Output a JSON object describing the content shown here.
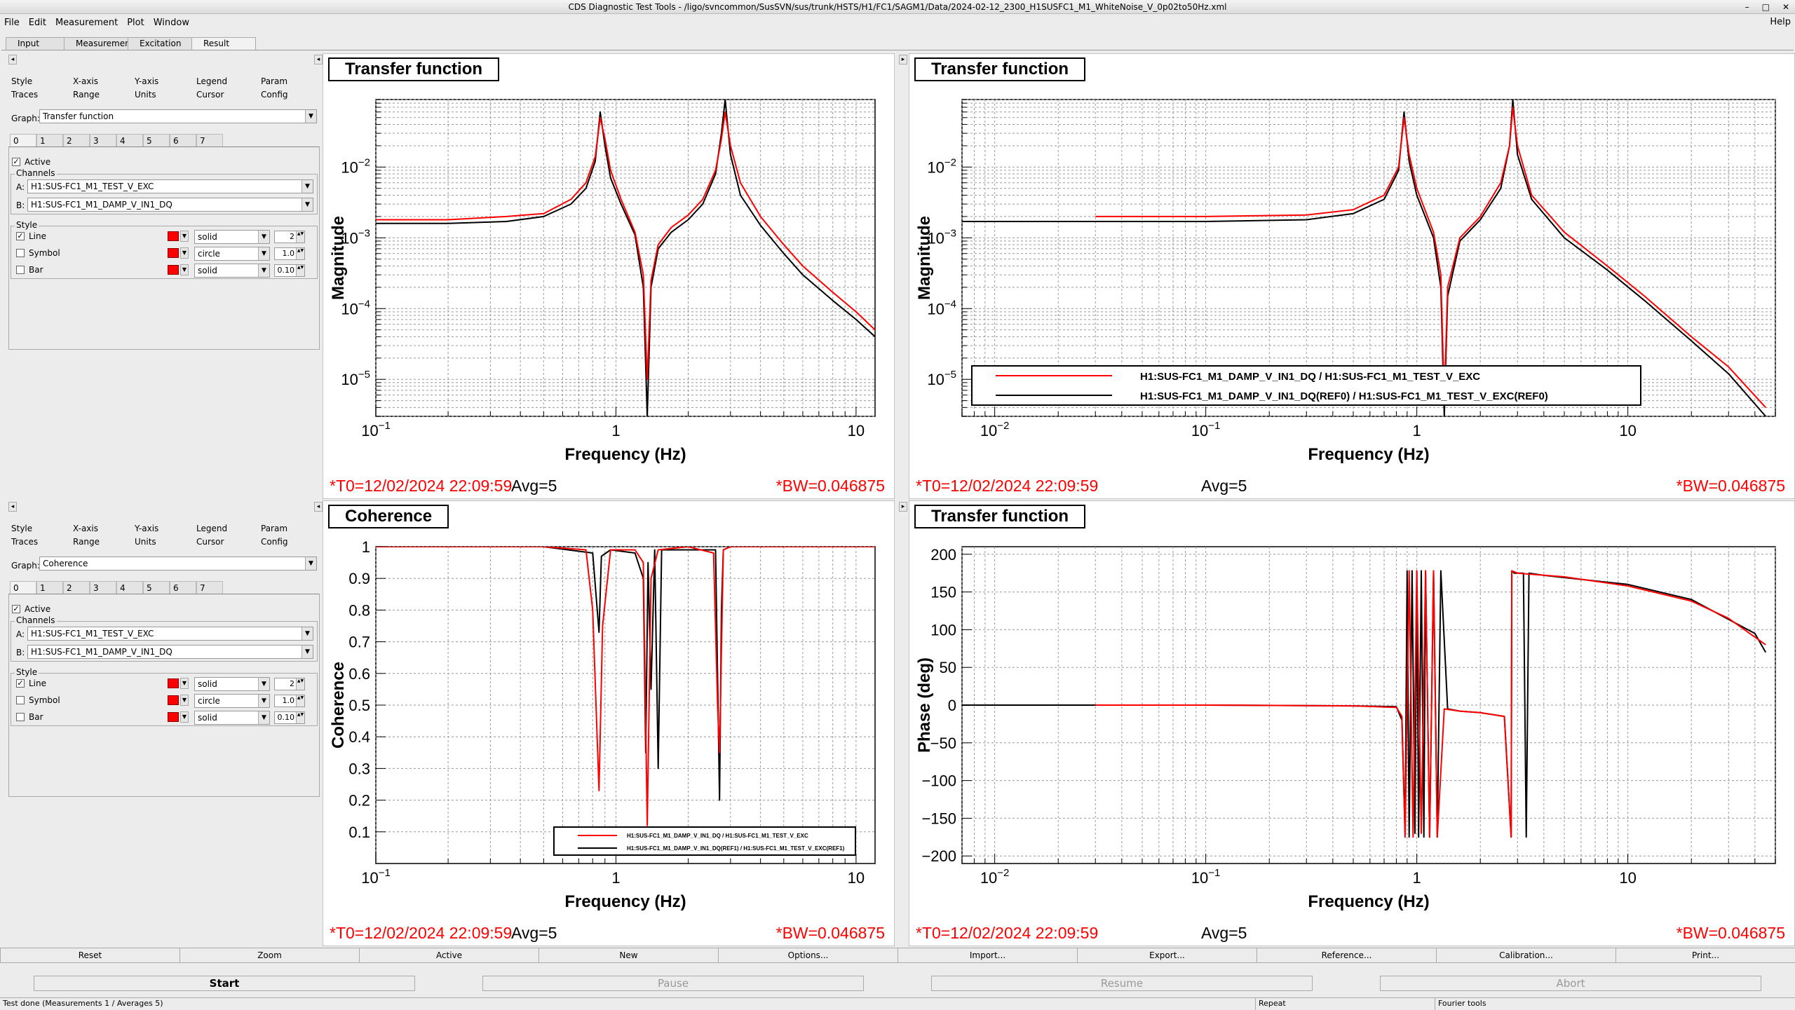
{
  "window": {
    "title": "CDS Diagnostic Test Tools - /ligo/svncommon/SusSVN/sus/trunk/HSTS/H1/FC1/SAGM1/Data/2024-02-12_2300_H1SUSFC1_M1_WhiteNoise_V_0p02to50Hz.xml",
    "wm_buttons": [
      "–",
      "□",
      "✕"
    ]
  },
  "menu": {
    "items": [
      "File",
      "Edit",
      "Measurement",
      "Plot",
      "Window"
    ],
    "help": "Help"
  },
  "main_tabs": [
    "Input",
    "Measurement",
    "Excitation",
    "Result"
  ],
  "controls": [
    {
      "subtabs_row1": [
        "Style",
        "X-axis",
        "Y-axis",
        "Legend",
        "Param"
      ],
      "subtabs_row2": [
        "Traces",
        "Range",
        "Units",
        "Cursor",
        "Config"
      ],
      "graph_label": "Graph:",
      "graph_value": "Transfer function",
      "trace_tabs": [
        "0",
        "1",
        "2",
        "3",
        "4",
        "5",
        "6",
        "7"
      ],
      "active_label": "Active",
      "channels_label": "Channels",
      "channel_a_label": "A:",
      "channel_a": "H1:SUS-FC1_M1_TEST_V_EXC",
      "channel_b_label": "B:",
      "channel_b": "H1:SUS-FC1_M1_DAMP_V_IN1_DQ",
      "style_label": "Style",
      "style_rows": [
        {
          "label": "Line",
          "checked": true,
          "type": "solid",
          "value": "2"
        },
        {
          "label": "Symbol",
          "checked": false,
          "type": "circle",
          "value": "1.0"
        },
        {
          "label": "Bar",
          "checked": false,
          "type": "solid",
          "value": "0.10"
        }
      ]
    },
    {
      "subtabs_row1": [
        "Style",
        "X-axis",
        "Y-axis",
        "Legend",
        "Param"
      ],
      "subtabs_row2": [
        "Traces",
        "Range",
        "Units",
        "Cursor",
        "Config"
      ],
      "graph_label": "Graph:",
      "graph_value": "Coherence",
      "trace_tabs": [
        "0",
        "1",
        "2",
        "3",
        "4",
        "5",
        "6",
        "7"
      ],
      "active_label": "Active",
      "channels_label": "Channels",
      "channel_a_label": "A:",
      "channel_a": "H1:SUS-FC1_M1_TEST_V_EXC",
      "channel_b_label": "B:",
      "channel_b": "H1:SUS-FC1_M1_DAMP_V_IN1_DQ",
      "style_label": "Style",
      "style_rows": [
        {
          "label": "Line",
          "checked": true,
          "type": "solid",
          "value": "2"
        },
        {
          "label": "Symbol",
          "checked": false,
          "type": "circle",
          "value": "1.0"
        },
        {
          "label": "Bar",
          "checked": false,
          "type": "solid",
          "value": "0.10"
        }
      ]
    }
  ],
  "plots": [
    {
      "title": "Transfer function",
      "t0": "*T0=12/02/2024 22:09:59",
      "avg": "Avg=5",
      "bw": "*BW=0.046875"
    },
    {
      "title": "Transfer function",
      "t0": "*T0=12/02/2024 22:09:59",
      "avg": "Avg=5",
      "bw": "*BW=0.046875"
    },
    {
      "title": "Coherence",
      "t0": "*T0=12/02/2024 22:09:59",
      "avg": "Avg=5",
      "bw": "*BW=0.046875"
    },
    {
      "title": "Transfer function",
      "t0": "*T0=12/02/2024 22:09:59",
      "avg": "Avg=5",
      "bw": "*BW=0.046875"
    }
  ],
  "chart_data": [
    {
      "type": "line",
      "title": "Transfer function",
      "xlabel": "Frequency (Hz)",
      "ylabel": "Magnitude",
      "xscale": "log",
      "yscale": "log",
      "xlim": [
        0.1,
        12
      ],
      "ylim": [
        3e-06,
        0.09
      ],
      "xticks": [
        {
          "v": 0.1,
          "t": "10"
        },
        {
          "v": 1,
          "t": "1"
        },
        {
          "v": 10,
          "t": "10"
        }
      ],
      "yticks": [
        {
          "v": 1e-05,
          "t": "10"
        },
        {
          "v": 0.0001,
          "t": "10"
        },
        {
          "v": 0.001,
          "t": "10"
        },
        {
          "v": 0.01,
          "t": "10"
        }
      ],
      "series": [
        {
          "color": "#ff0000",
          "x": [
            0.1,
            0.2,
            0.35,
            0.5,
            0.65,
            0.75,
            0.82,
            0.86,
            0.9,
            0.95,
            1.05,
            1.2,
            1.3,
            1.35,
            1.4,
            1.5,
            1.7,
            2.0,
            2.3,
            2.6,
            2.75,
            2.85,
            3.0,
            3.3,
            4,
            5,
            6,
            8,
            10,
            12
          ],
          "y": [
            0.0018,
            0.0018,
            0.002,
            0.0022,
            0.0035,
            0.006,
            0.014,
            0.05,
            0.025,
            0.009,
            0.0035,
            0.0012,
            0.0003,
            1e-05,
            0.00025,
            0.0008,
            0.0014,
            0.0021,
            0.0035,
            0.009,
            0.025,
            0.06,
            0.02,
            0.006,
            0.002,
            0.0008,
            0.0004,
            0.00017,
            9e-05,
            5e-05
          ]
        },
        {
          "color": "#000000",
          "x": [
            0.1,
            0.2,
            0.35,
            0.5,
            0.65,
            0.75,
            0.82,
            0.86,
            0.9,
            0.95,
            1.05,
            1.2,
            1.3,
            1.35,
            1.4,
            1.5,
            1.7,
            2.0,
            2.3,
            2.6,
            2.75,
            2.85,
            3.0,
            3.3,
            4,
            5,
            6,
            8,
            10,
            12
          ],
          "y": [
            0.0016,
            0.0016,
            0.0017,
            0.002,
            0.003,
            0.005,
            0.012,
            0.06,
            0.02,
            0.007,
            0.003,
            0.0011,
            0.0002,
            3e-06,
            0.0002,
            0.0007,
            0.0012,
            0.0018,
            0.003,
            0.008,
            0.03,
            0.09,
            0.015,
            0.004,
            0.0015,
            0.0006,
            0.0003,
            0.00013,
            7e-05,
            4e-05
          ]
        }
      ]
    },
    {
      "type": "line",
      "title": "Transfer function",
      "xlabel": "Frequency (Hz)",
      "ylabel": "Magnitude",
      "xscale": "log",
      "yscale": "log",
      "xlim": [
        0.007,
        50
      ],
      "ylim": [
        3e-06,
        0.09
      ],
      "xticks": [
        {
          "v": 0.01,
          "t": "10"
        },
        {
          "v": 0.1,
          "t": "10"
        },
        {
          "v": 1,
          "t": "1"
        },
        {
          "v": 10,
          "t": "10"
        }
      ],
      "yticks": [
        {
          "v": 1e-05,
          "t": "10"
        },
        {
          "v": 0.0001,
          "t": "10"
        },
        {
          "v": 0.001,
          "t": "10"
        },
        {
          "v": 0.01,
          "t": "10"
        }
      ],
      "legend": [
        {
          "color": "#ff0000",
          "label": "H1:SUS-FC1_M1_DAMP_V_IN1_DQ / H1:SUS-FC1_M1_TEST_V_EXC"
        },
        {
          "color": "#000000",
          "label": "H1:SUS-FC1_M1_DAMP_V_IN1_DQ(REF0) / H1:SUS-FC1_M1_TEST_V_EXC(REF0)"
        }
      ],
      "series": [
        {
          "color": "#ff0000",
          "x": [
            0.03,
            0.1,
            0.3,
            0.5,
            0.7,
            0.82,
            0.87,
            0.92,
            1.0,
            1.2,
            1.3,
            1.35,
            1.4,
            1.6,
            2.0,
            2.5,
            2.75,
            2.85,
            3.0,
            3.5,
            5,
            8,
            12,
            20,
            30,
            45
          ],
          "y": [
            0.002,
            0.002,
            0.0021,
            0.0025,
            0.004,
            0.01,
            0.05,
            0.015,
            0.005,
            0.0012,
            0.0003,
            5e-06,
            0.0002,
            0.001,
            0.002,
            0.006,
            0.02,
            0.07,
            0.02,
            0.004,
            0.0012,
            0.0004,
            0.00015,
            4e-05,
            1.5e-05,
            4e-06
          ]
        },
        {
          "color": "#000000",
          "x": [
            0.007,
            0.03,
            0.1,
            0.3,
            0.5,
            0.7,
            0.82,
            0.87,
            0.92,
            1.0,
            1.2,
            1.3,
            1.35,
            1.4,
            1.6,
            2.0,
            2.5,
            2.75,
            2.85,
            3.0,
            3.5,
            5,
            8,
            12,
            20,
            30,
            45
          ],
          "y": [
            0.0017,
            0.0017,
            0.0017,
            0.0018,
            0.0022,
            0.0035,
            0.009,
            0.06,
            0.012,
            0.004,
            0.001,
            0.0002,
            3e-06,
            0.00015,
            0.0009,
            0.0018,
            0.005,
            0.02,
            0.09,
            0.015,
            0.0035,
            0.001,
            0.00035,
            0.00013,
            3.5e-05,
            1.2e-05,
            3e-06
          ]
        }
      ]
    },
    {
      "type": "line",
      "title": "Coherence",
      "xlabel": "Frequency (Hz)",
      "ylabel": "Coherence",
      "xscale": "log",
      "yscale": "linear",
      "xlim": [
        0.1,
        12
      ],
      "ylim": [
        0,
        1
      ],
      "xticks": [
        {
          "v": 0.1,
          "t": "10"
        },
        {
          "v": 1,
          "t": "1"
        },
        {
          "v": 10,
          "t": "10"
        }
      ],
      "yticks": [
        {
          "v": 0.1,
          "t": "0.1"
        },
        {
          "v": 0.2,
          "t": "0.2"
        },
        {
          "v": 0.3,
          "t": "0.3"
        },
        {
          "v": 0.4,
          "t": "0.4"
        },
        {
          "v": 0.5,
          "t": "0.5"
        },
        {
          "v": 0.6,
          "t": "0.6"
        },
        {
          "v": 0.7,
          "t": "0.7"
        },
        {
          "v": 0.8,
          "t": "0.8"
        },
        {
          "v": 0.9,
          "t": "0.9"
        },
        {
          "v": 1,
          "t": "1"
        }
      ],
      "legend": [
        {
          "color": "#ff0000",
          "label": "H1:SUS-FC1_M1_DAMP_V_IN1_DQ / H1:SUS-FC1_M1_TEST_V_EXC"
        },
        {
          "color": "#000000",
          "label": "H1:SUS-FC1_M1_DAMP_V_IN1_DQ(REF1) / H1:SUS-FC1_M1_TEST_V_EXC(REF1)"
        }
      ],
      "series": [
        {
          "color": "#ff0000",
          "x": [
            0.1,
            0.5,
            0.75,
            0.8,
            0.85,
            0.88,
            0.95,
            1.2,
            1.3,
            1.35,
            1.4,
            1.5,
            2.0,
            2.55,
            2.65,
            2.7,
            2.8,
            3.0,
            5,
            12
          ],
          "y": [
            1,
            1,
            0.99,
            0.8,
            0.23,
            0.75,
            0.99,
            0.99,
            0.95,
            0.12,
            0.9,
            0.99,
            1,
            0.98,
            0.5,
            0.35,
            0.99,
            1,
            1,
            1
          ]
        },
        {
          "color": "#000000",
          "x": [
            0.1,
            0.5,
            0.8,
            0.85,
            0.87,
            0.95,
            1.2,
            1.3,
            1.33,
            1.36,
            1.4,
            1.45,
            1.5,
            1.55,
            2.0,
            2.6,
            2.7,
            2.75,
            2.8,
            3.0,
            5,
            12
          ],
          "y": [
            1,
            1,
            0.98,
            0.73,
            0.97,
            0.99,
            0.98,
            0.9,
            0.35,
            0.95,
            0.55,
            0.99,
            0.3,
            0.99,
            0.99,
            0.99,
            0.2,
            0.8,
            0.99,
            1,
            1,
            1
          ]
        }
      ]
    },
    {
      "type": "line",
      "title": "Transfer function",
      "xlabel": "Frequency (Hz)",
      "ylabel": "Phase (deg)",
      "xscale": "log",
      "yscale": "linear",
      "xlim": [
        0.007,
        50
      ],
      "ylim": [
        -210,
        210
      ],
      "xticks": [
        {
          "v": 0.01,
          "t": "10"
        },
        {
          "v": 0.1,
          "t": "10"
        },
        {
          "v": 1,
          "t": "1"
        },
        {
          "v": 10,
          "t": "10"
        }
      ],
      "yticks": [
        {
          "v": -200,
          "t": "−200"
        },
        {
          "v": -150,
          "t": "−150"
        },
        {
          "v": -100,
          "t": "−100"
        },
        {
          "v": -50,
          "t": "−50"
        },
        {
          "v": 0,
          "t": "0"
        },
        {
          "v": 50,
          "t": "50"
        },
        {
          "v": 100,
          "t": "100"
        },
        {
          "v": 150,
          "t": "150"
        },
        {
          "v": 200,
          "t": "200"
        }
      ],
      "series": [
        {
          "color": "#000000",
          "x": [
            0.007,
            0.1,
            0.5,
            0.8,
            0.85,
            0.88,
            0.9,
            0.92,
            0.95,
            0.98,
            1.0,
            1.02,
            1.05,
            1.08,
            1.1,
            1.15,
            1.2,
            1.25,
            1.3,
            1.4,
            1.6,
            2.0,
            2.6,
            2.8,
            2.82,
            2.9,
            3.2,
            3.3,
            3.4,
            4,
            10,
            20,
            40,
            45
          ],
          "y": [
            0,
            0,
            -1,
            -2,
            -20,
            -170,
            178,
            -175,
            178,
            -170,
            178,
            -175,
            178,
            -175,
            178,
            -175,
            178,
            -175,
            178,
            -5,
            -8,
            -10,
            -15,
            -175,
            178,
            175,
            175,
            -175,
            175,
            172,
            160,
            140,
            95,
            70
          ]
        },
        {
          "color": "#ff0000",
          "x": [
            0.03,
            0.1,
            0.5,
            0.8,
            0.85,
            0.88,
            0.92,
            0.96,
            1.0,
            1.05,
            1.1,
            1.15,
            1.2,
            1.25,
            1.35,
            1.6,
            2.0,
            2.6,
            2.8,
            2.82,
            3.0,
            5,
            10,
            20,
            30,
            45
          ],
          "y": [
            0,
            0,
            -1,
            -3,
            -15,
            -175,
            178,
            -175,
            178,
            -170,
            178,
            -175,
            178,
            -175,
            -5,
            -8,
            -10,
            -15,
            -175,
            178,
            175,
            170,
            158,
            138,
            115,
            80
          ]
        }
      ]
    }
  ],
  "bottom_buttons": [
    "Reset",
    "Zoom",
    "Active",
    "New",
    "Options...",
    "Import...",
    "Export...",
    "Reference...",
    "Calibration...",
    "Print..."
  ],
  "start_buttons": [
    {
      "label": "Start",
      "enabled": true
    },
    {
      "label": "Pause",
      "enabled": false
    },
    {
      "label": "Resume",
      "enabled": false
    },
    {
      "label": "Abort",
      "enabled": false
    }
  ],
  "status": {
    "message": "Test done (Measurements 1 / Averages 5)",
    "repeat": "Repeat",
    "mode": "Fourier tools"
  }
}
